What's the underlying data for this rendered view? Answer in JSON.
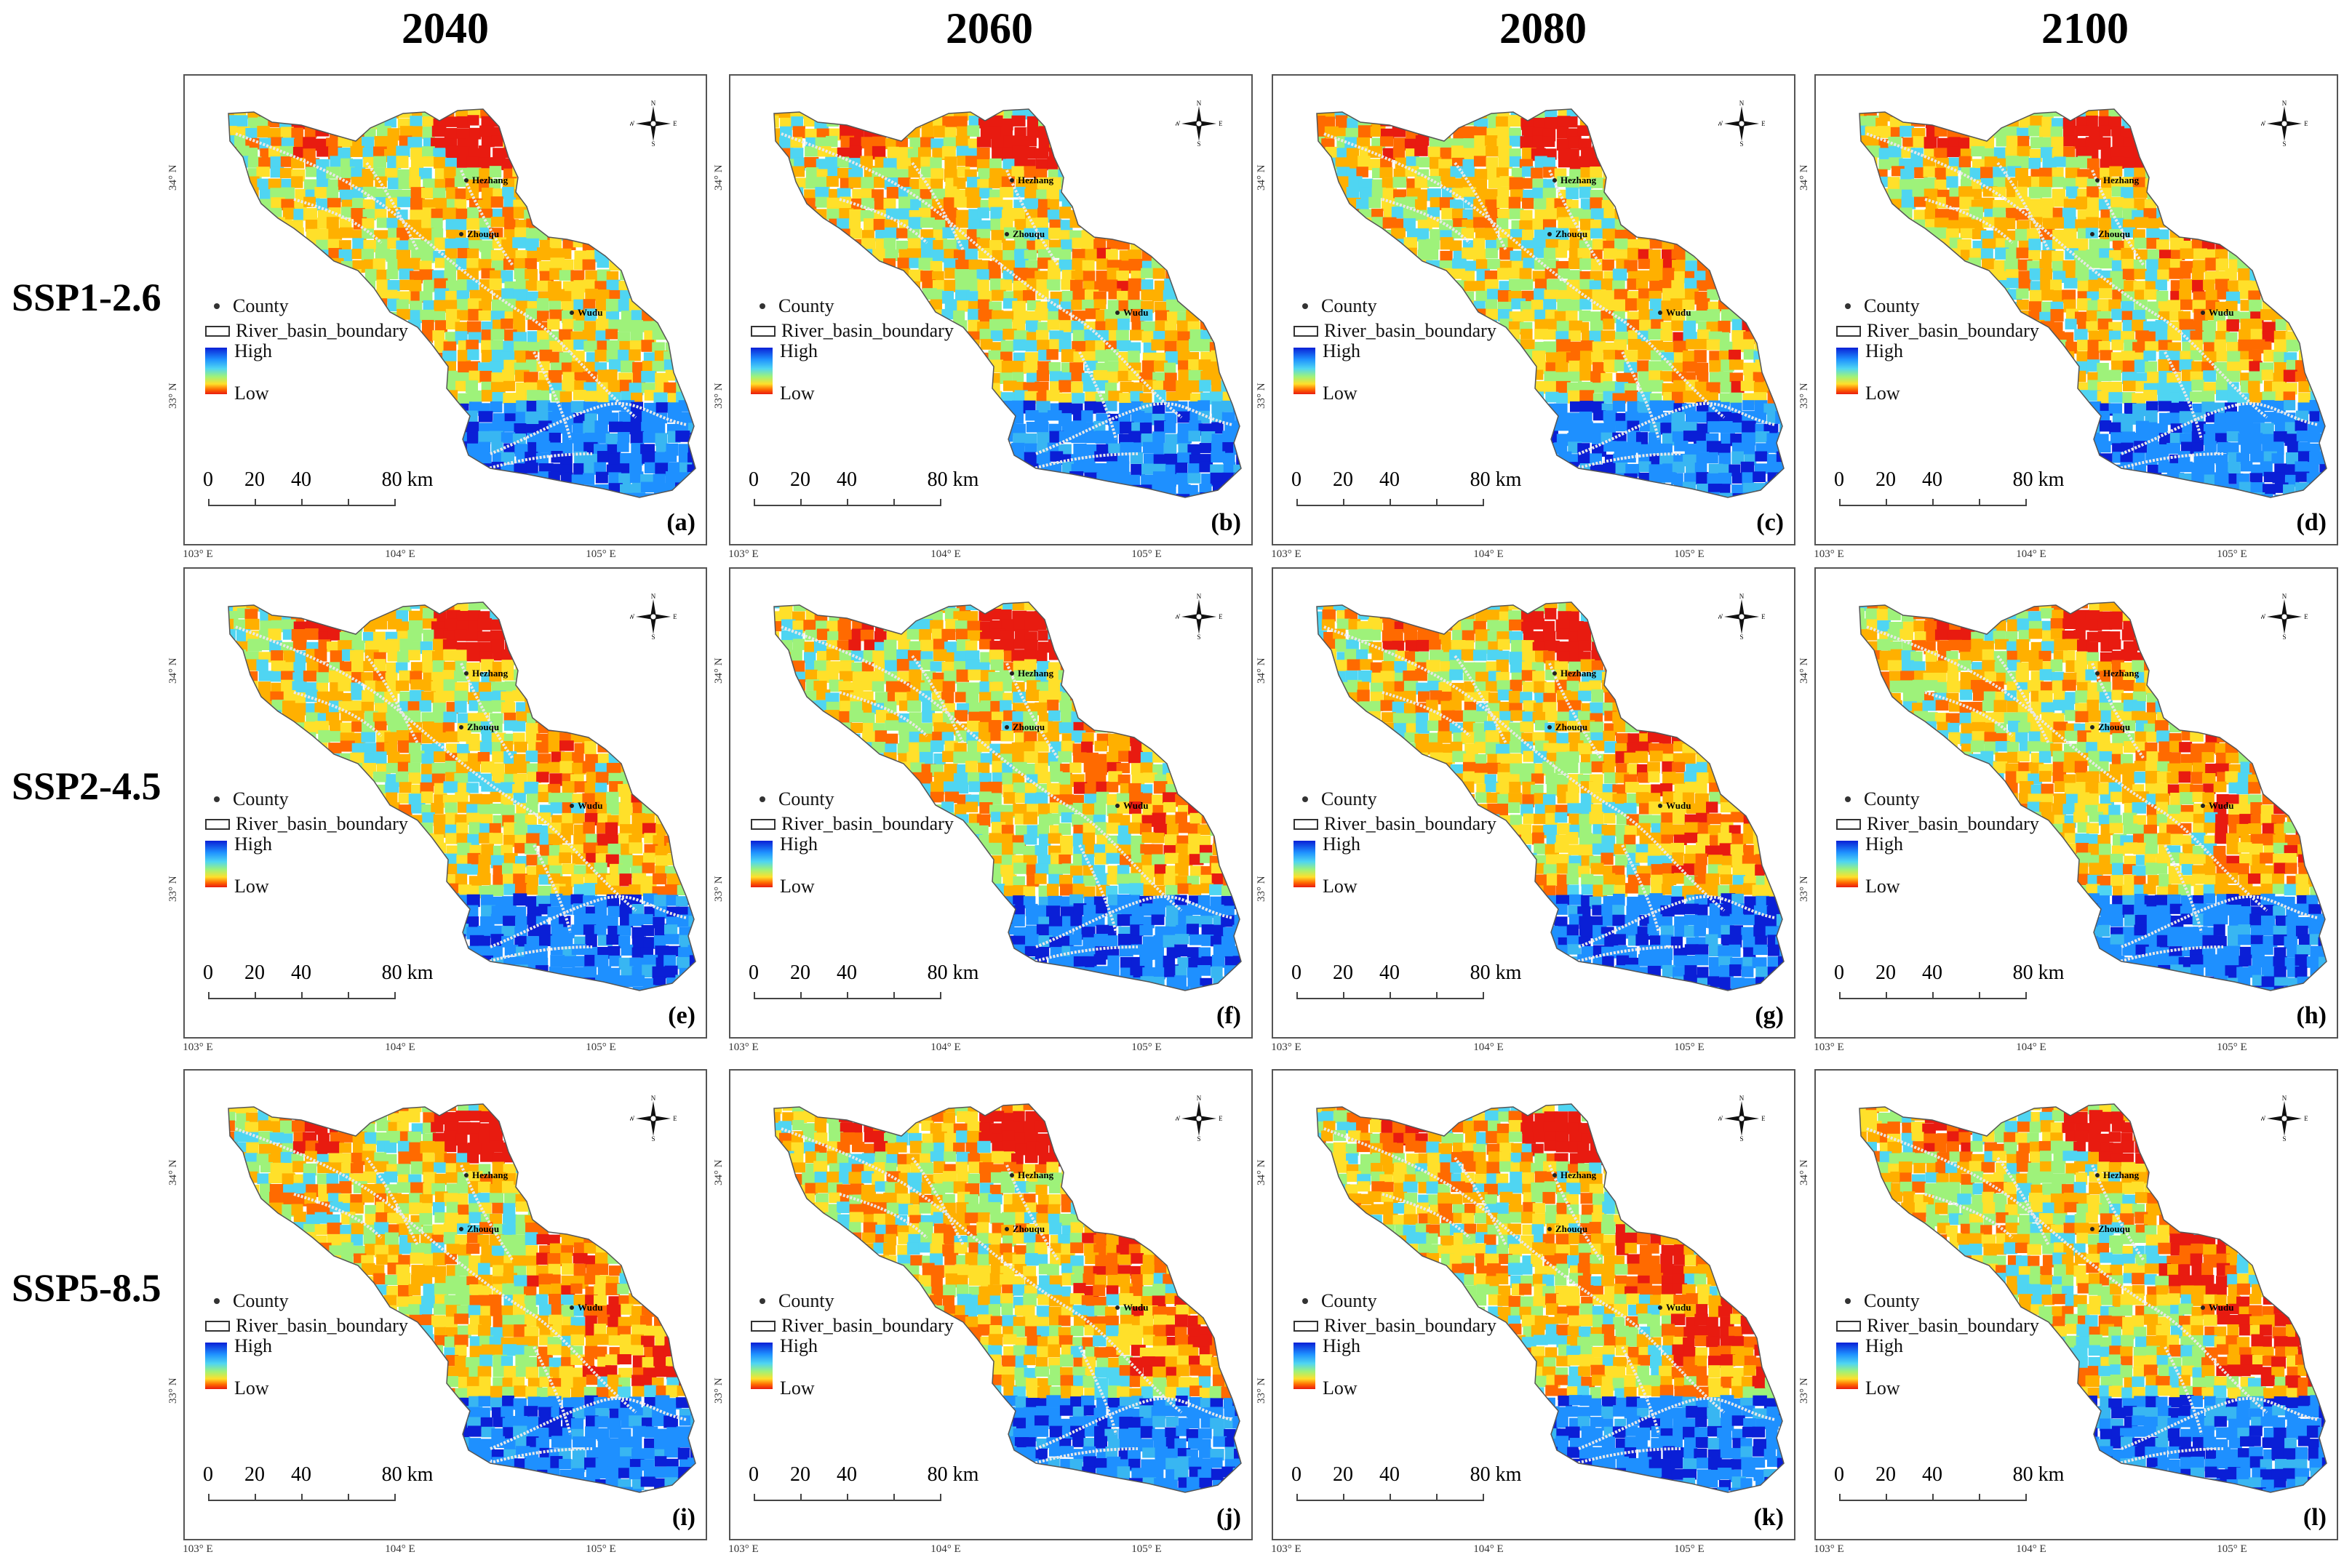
{
  "years": [
    "2040",
    "2060",
    "2080",
    "2100"
  ],
  "scenarios": [
    "SSP1-2.6",
    "SSP2-4.5",
    "SSP5-8.5"
  ],
  "legend": {
    "county": "County",
    "boundary": "River_basin_boundary",
    "high": "High",
    "low": "Low"
  },
  "scale": {
    "ticks": [
      "0",
      "20",
      "40",
      "80"
    ],
    "unit": "km"
  },
  "lon_labels": [
    "103° E",
    "104° E",
    "105° E"
  ],
  "lat_labels": [
    "34° N",
    "33° N"
  ],
  "compass": {
    "n": "N",
    "s": "S",
    "e": "E",
    "w": "W"
  },
  "counties": [
    "Hezhang",
    "Zhouqu",
    "Wudu"
  ],
  "panel_labels": [
    "(a)",
    "(b)",
    "(c)",
    "(d)",
    "(e)",
    "(f)",
    "(g)",
    "(h)",
    "(i)",
    "(j)",
    "(k)",
    "(l)"
  ],
  "colors": {
    "high": "#0a1fd6",
    "mid": "#9ef27a",
    "low": "#e81b10",
    "river": "#e8e8e8"
  }
}
